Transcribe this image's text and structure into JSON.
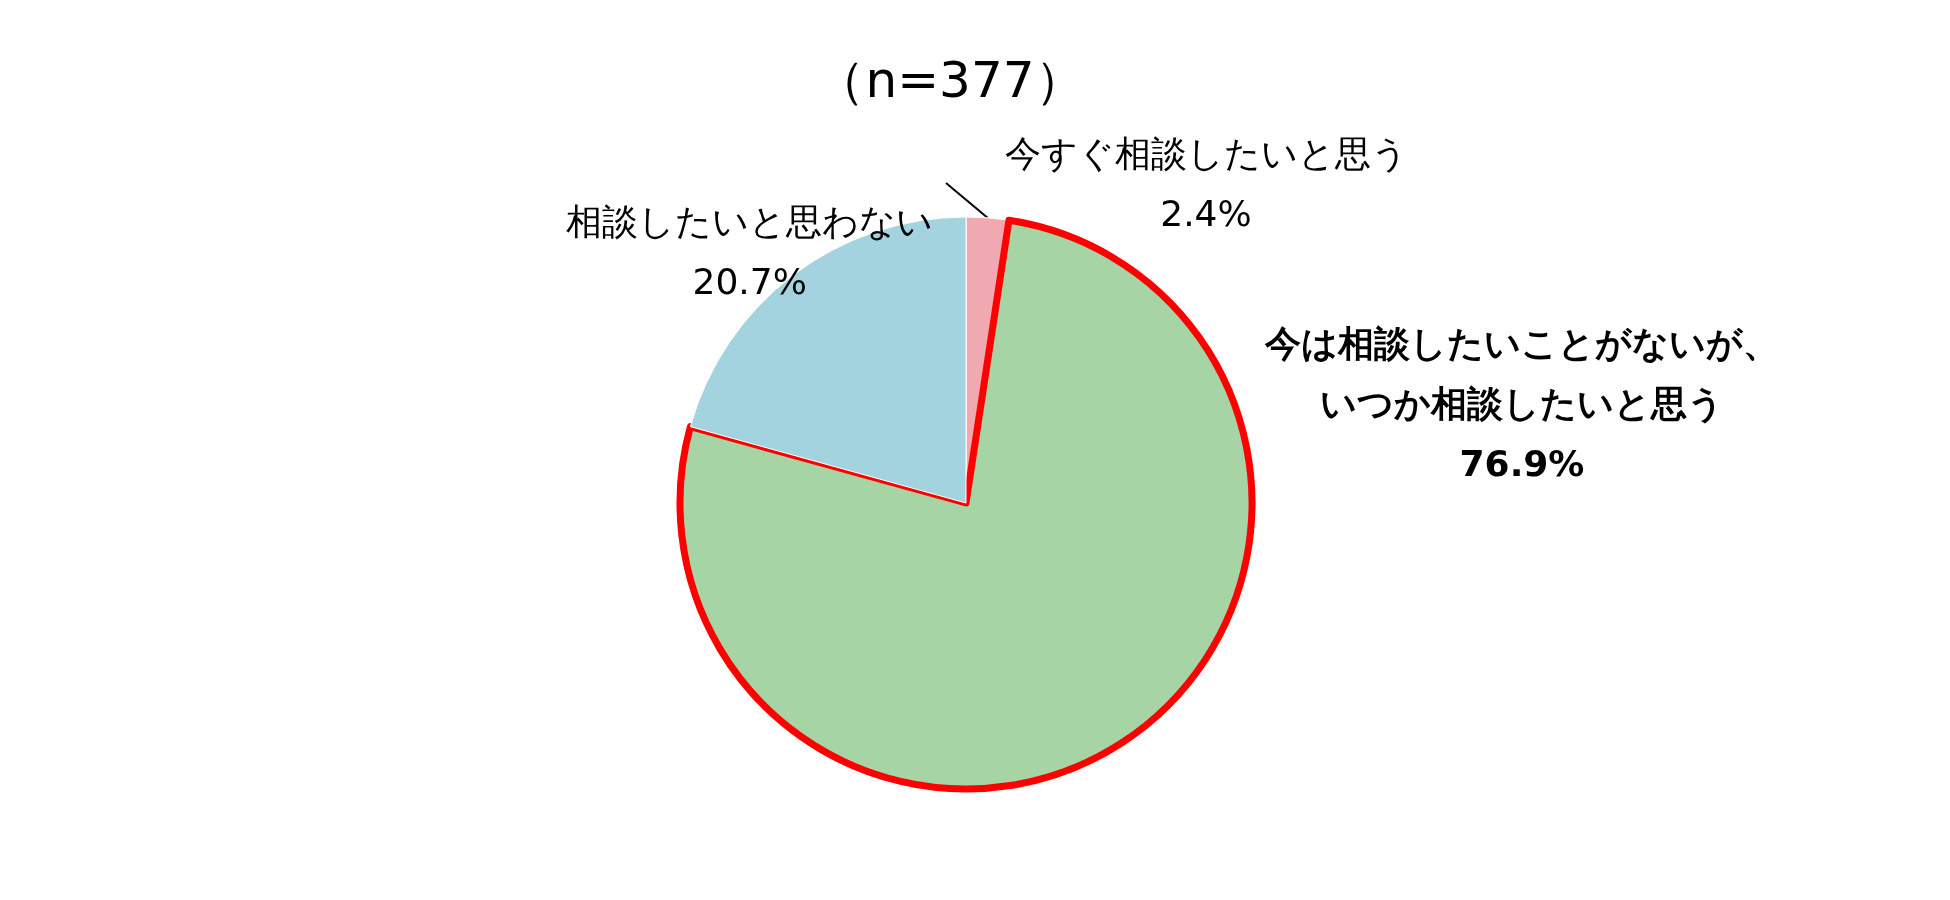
{
  "chart_data": {
    "type": "pie",
    "title": "（n=377）",
    "categories": [
      "今すぐ相談したいと思う",
      "今は相談したいことがないが、いつか相談したいと思う",
      "相談したいと思わない"
    ],
    "values": [
      2.4,
      76.9,
      20.7
    ],
    "value_labels": [
      "2.4%",
      "76.9%",
      "20.7%"
    ],
    "colors": [
      "#f0a9b1",
      "#a6d4a4",
      "#a2d3df"
    ],
    "legend": false
  }
}
